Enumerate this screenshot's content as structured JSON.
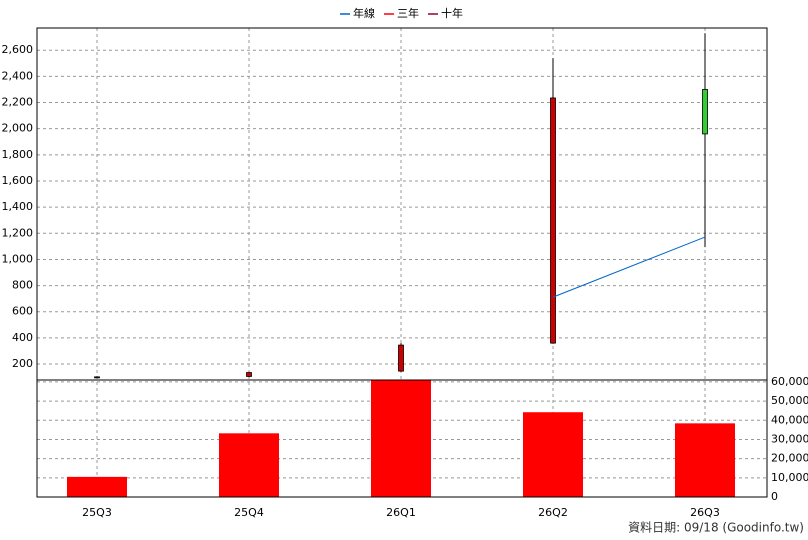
{
  "chart_data": {
    "type": "candlestick",
    "categories": [
      "25Q3",
      "25Q4",
      "26Q1",
      "26Q2",
      "26Q3"
    ],
    "open": [
      101,
      105,
      146,
      360,
      2300
    ],
    "high": [
      106,
      140,
      360,
      2540,
      2730
    ],
    "low": [
      98,
      100,
      140,
      355,
      1094
    ],
    "close": [
      102,
      135,
      345,
      2235,
      1960
    ],
    "up_color": "#cc0000",
    "down_color": "#33cc33",
    "ylim": [
      78,
      2770
    ],
    "yticks": [
      200,
      400,
      600,
      800,
      {
        "value": 1000,
        "label": "1,000"
      },
      {
        "value": 1200,
        "label": "1,200"
      },
      {
        "value": 1400,
        "label": "1,400"
      },
      {
        "value": 1600,
        "label": "1,600"
      },
      {
        "value": 1800,
        "label": "1,800"
      },
      {
        "value": 2000,
        "label": "2,000"
      },
      {
        "value": 2200,
        "label": "2,200"
      },
      {
        "value": 2400,
        "label": "2,400"
      },
      {
        "value": 2600,
        "label": "2,600"
      }
    ],
    "grid": true,
    "series": [
      {
        "name": "年線",
        "color": "#0066cc",
        "values": [
          null,
          null,
          null,
          712,
          1171
        ]
      },
      {
        "name": "三年",
        "color": "#ff0000",
        "values": [
          null,
          null,
          null,
          null,
          null
        ]
      },
      {
        "name": "十年",
        "color": "#990033",
        "values": [
          null,
          null,
          null,
          null,
          null
        ]
      }
    ],
    "volume": {
      "color": "#ff0000",
      "values": [
        10500,
        33200,
        61000,
        44200,
        38400
      ],
      "ylim": [
        0,
        61000
      ],
      "yticks": [
        0,
        {
          "value": 10000,
          "label": "10,000"
        },
        {
          "value": 20000,
          "label": "20,000"
        },
        {
          "value": 30000,
          "label": "30,000"
        },
        {
          "value": 40000,
          "label": "40,000"
        },
        {
          "value": 50000,
          "label": "50,000"
        },
        {
          "value": 60000,
          "label": "60,000"
        }
      ]
    }
  },
  "footer": "資料日期: 09/18  (Goodinfo.tw)"
}
